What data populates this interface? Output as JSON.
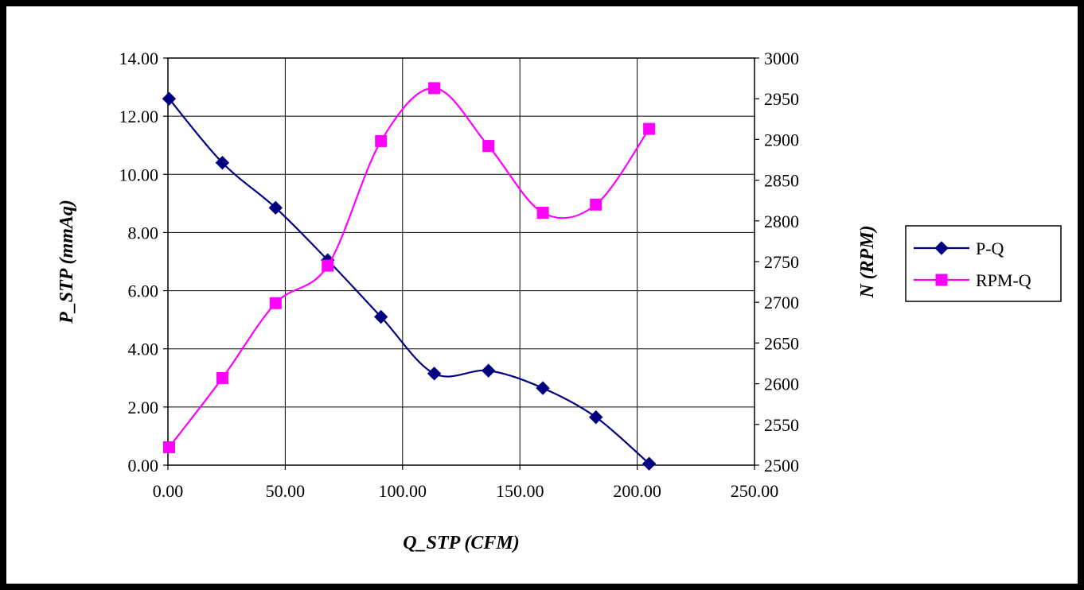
{
  "chart_data": {
    "type": "line",
    "title": "",
    "xlabel": "Q_STP (CFM)",
    "ylabel": "P_STP (mmAq)",
    "y2label": "N (RPM)",
    "xlim": [
      0,
      250
    ],
    "ylim": [
      0,
      14
    ],
    "y2lim": [
      2500,
      3000
    ],
    "x_ticks": [
      "0.00",
      "50.00",
      "100.00",
      "150.00",
      "200.00",
      "250.00"
    ],
    "y_ticks": [
      "0.00",
      "2.00",
      "4.00",
      "6.00",
      "8.00",
      "10.00",
      "12.00",
      "14.00"
    ],
    "y2_ticks": [
      "2500",
      "2550",
      "2600",
      "2650",
      "2700",
      "2750",
      "2800",
      "2850",
      "2900",
      "2950",
      "3000"
    ],
    "x_tick_values": [
      0,
      50,
      100,
      150,
      200,
      250
    ],
    "y_tick_values": [
      0,
      2,
      4,
      6,
      8,
      10,
      12,
      14
    ],
    "y2_tick_values": [
      2500,
      2550,
      2600,
      2650,
      2700,
      2750,
      2800,
      2850,
      2900,
      2950,
      3000
    ],
    "grid": true,
    "legend_position": "right",
    "series": [
      {
        "name": "P-Q",
        "axis": "left",
        "marker": "diamond",
        "color": "#000080",
        "x": [
          0.5,
          23.2,
          45.9,
          68.1,
          90.8,
          113.5,
          136.6,
          159.8,
          182.4,
          205.1
        ],
        "y": [
          12.6,
          10.4,
          8.85,
          7.05,
          5.1,
          3.15,
          3.25,
          2.65,
          1.65,
          0.05
        ]
      },
      {
        "name": "RPM-Q",
        "axis": "right",
        "marker": "square",
        "color": "#ff00ff",
        "x": [
          0.5,
          23.2,
          45.9,
          68.1,
          90.8,
          113.5,
          136.6,
          159.8,
          182.4,
          205.1
        ],
        "y": [
          2522,
          2607,
          2699,
          2745,
          2898,
          2963,
          2892,
          2810,
          2820,
          2913
        ]
      }
    ]
  }
}
